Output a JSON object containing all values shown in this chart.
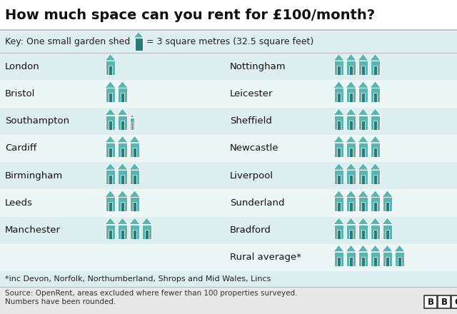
{
  "title": "How much space can you rent for £100/month?",
  "key_text_left": "Key: One small garden shed",
  "key_text_right": "= 3 square metres (32.5 square feet)",
  "left_cities": [
    "London",
    "Bristol",
    "Southampton",
    "Cardiff",
    "Birmingham",
    "Leeds",
    "Manchester"
  ],
  "left_sheds": [
    1,
    2,
    2.5,
    3,
    3,
    3,
    4
  ],
  "right_cities": [
    "Nottingham",
    "Leicester",
    "Sheffield",
    "Newcastle",
    "Liverpool",
    "Sunderland",
    "Bradford",
    "Rural average*"
  ],
  "right_sheds": [
    4,
    4,
    4,
    4,
    4,
    5,
    5,
    6
  ],
  "footnote": "*inc Devon, Norfolk, Northumberland, Shrops and Mid Wales, Lincs",
  "source_line1": "Source: OpenRent, areas excluded where fewer than 100 properties surveyed.",
  "source_line2": "Numbers have been rounded.",
  "shed_teal": "#5ab5b0",
  "shed_dark": "#2a7a76",
  "title_bg": "#ffffff",
  "key_bg": "#ddeef0",
  "row_color_a": "#ddeef0",
  "row_color_b": "#edf6f7",
  "footer_bg": "#e8e8e8",
  "footnote_bg": "#ddeef0",
  "title_border": "#cccccc",
  "text_dark": "#222222",
  "text_mid": "#444444"
}
